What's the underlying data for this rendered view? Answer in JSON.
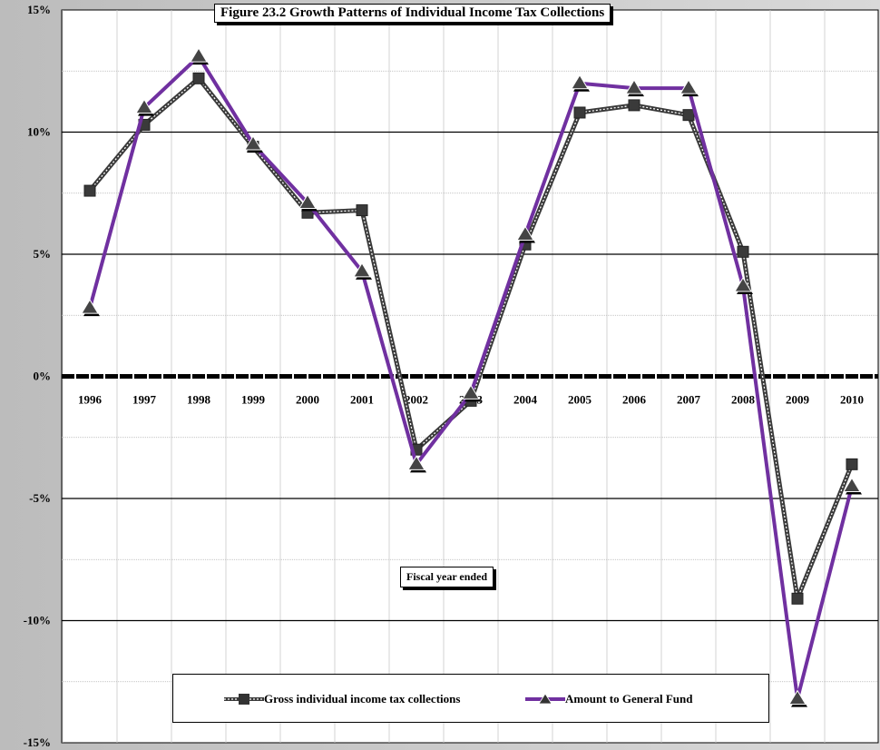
{
  "chart_data": {
    "type": "line",
    "title": "Figure 23.2  Growth Patterns of Individual Income Tax Collections",
    "xlabel": "Fiscal year ended",
    "ylabel": "",
    "categories": [
      "1996",
      "1997",
      "1998",
      "1999",
      "2000",
      "2001",
      "2002",
      "2003",
      "2004",
      "2005",
      "2006",
      "2007",
      "2008",
      "2009",
      "2010"
    ],
    "ylim": [
      -15,
      15
    ],
    "yticks": [
      15,
      10,
      5,
      0,
      -5,
      -10,
      -15
    ],
    "ytick_labels": [
      "15%",
      "10%",
      "5%",
      "0%",
      "-5%",
      "-10%",
      "-15%"
    ],
    "grid": true,
    "legend_position": "bottom",
    "series": [
      {
        "name": "Gross individual income tax collections",
        "values": [
          7.6,
          10.3,
          12.2,
          9.4,
          6.7,
          6.8,
          -3.0,
          -1.0,
          5.4,
          10.8,
          11.1,
          10.7,
          5.1,
          -9.1,
          -3.6
        ],
        "color": "#3a3a3a",
        "marker": "square"
      },
      {
        "name": "Amount to General Fund",
        "values": [
          2.8,
          11.0,
          13.1,
          9.5,
          7.1,
          4.3,
          -3.6,
          -0.7,
          5.8,
          12.0,
          11.8,
          11.8,
          3.7,
          -13.2,
          -4.5
        ],
        "color": "#7030a0",
        "marker": "triangle"
      }
    ]
  }
}
